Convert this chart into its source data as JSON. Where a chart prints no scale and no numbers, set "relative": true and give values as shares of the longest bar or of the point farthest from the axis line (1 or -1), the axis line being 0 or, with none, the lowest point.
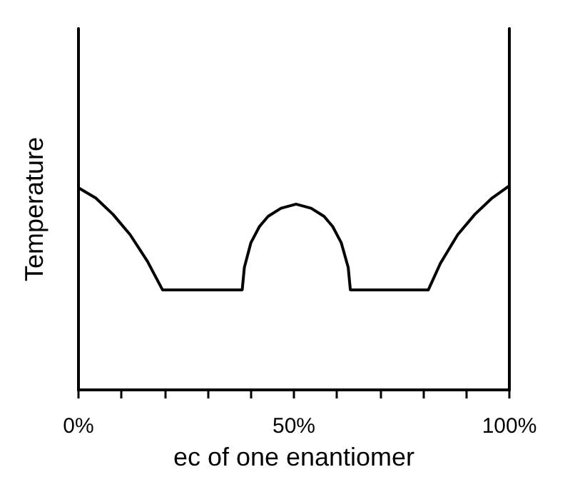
{
  "chart_data": {
    "type": "line",
    "xlabel": "ec of one enantiomer",
    "ylabel": "Temperature",
    "relative": true,
    "xlim": [
      0,
      100
    ],
    "xticks": [
      {
        "value": 0,
        "label": "0%"
      },
      {
        "value": 10,
        "label": null
      },
      {
        "value": 20,
        "label": null
      },
      {
        "value": 30,
        "label": null
      },
      {
        "value": 40,
        "label": null
      },
      {
        "value": 50,
        "label": "50%"
      },
      {
        "value": 60,
        "label": null
      },
      {
        "value": 70,
        "label": null
      },
      {
        "value": 80,
        "label": null
      },
      {
        "value": 90,
        "label": null
      },
      {
        "value": 100,
        "label": "100%"
      }
    ],
    "series": [
      {
        "color": "#000000",
        "x": [
          0,
          4,
          8,
          12,
          16,
          19.5,
          38,
          38.5,
          40,
          42,
          44,
          47,
          50.5,
          54,
          57,
          59,
          61,
          62.6,
          63.1,
          81.2,
          84,
          88,
          92,
          96,
          100
        ],
        "values": [
          0.99,
          0.94,
          0.86,
          0.76,
          0.63,
          0.49,
          0.49,
          0.6,
          0.72,
          0.8,
          0.85,
          0.89,
          0.91,
          0.89,
          0.85,
          0.8,
          0.72,
          0.6,
          0.49,
          0.49,
          0.62,
          0.76,
          0.86,
          0.94,
          1
        ]
      }
    ],
    "grid": false,
    "marker": "none",
    "line_style": "solid",
    "tick_labels": "x"
  }
}
